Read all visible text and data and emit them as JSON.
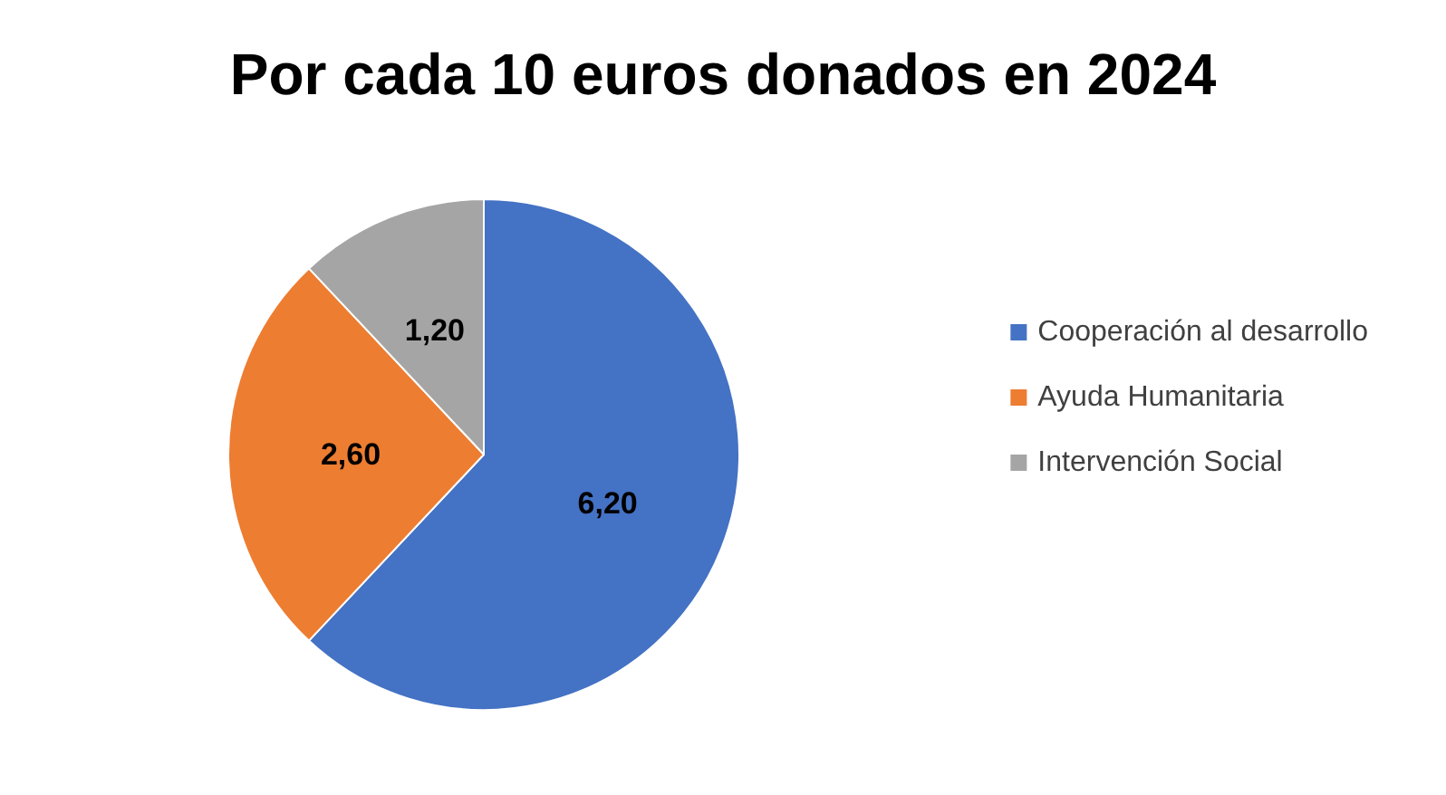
{
  "chart_data": {
    "type": "pie",
    "title": "Por cada 10 euros donados en 2024",
    "categories": [
      "Cooperación al desarrollo",
      "Ayuda Humanitaria",
      "Intervención Social"
    ],
    "values": [
      6.2,
      2.6,
      1.2
    ],
    "colors": [
      "#4472c4",
      "#ed7d31",
      "#a5a5a5"
    ],
    "value_labels": [
      "6,20",
      "2,60",
      "1,20"
    ],
    "legend": "right"
  }
}
